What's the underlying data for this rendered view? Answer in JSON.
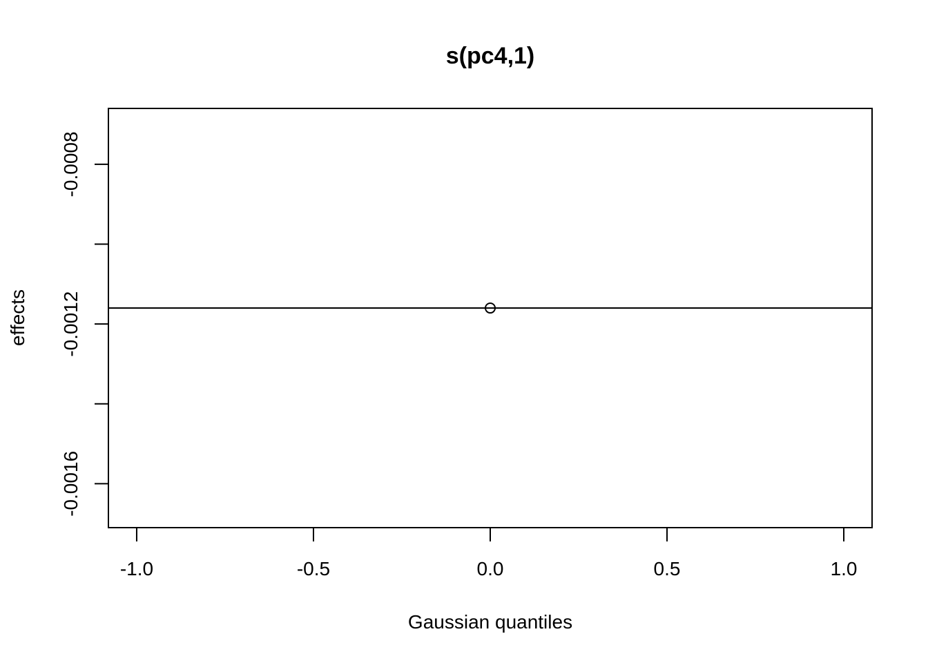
{
  "chart_data": {
    "type": "scatter",
    "title": "s(pc4,1)",
    "xlabel": "Gaussian quantiles",
    "ylabel": "effects",
    "xlim": [
      -1.08,
      1.08
    ],
    "ylim": [
      -0.00171,
      -0.00066
    ],
    "x_ticks": [
      -1.0,
      -0.5,
      0.0,
      0.5,
      1.0
    ],
    "x_tick_labels": [
      "-1.0",
      "-0.5",
      "0.0",
      "0.5",
      "1.0"
    ],
    "y_ticks": [
      -0.0016,
      -0.0014,
      -0.0012,
      -0.001,
      -0.0008
    ],
    "y_tick_labels": [
      "-0.0016",
      "",
      "-0.0012",
      "",
      "-0.0008"
    ],
    "points": [
      {
        "x": 0.0,
        "y": -0.00116
      }
    ],
    "reference_line": {
      "type": "horizontal",
      "y": -0.00116
    },
    "grid": false,
    "legend": "none"
  }
}
